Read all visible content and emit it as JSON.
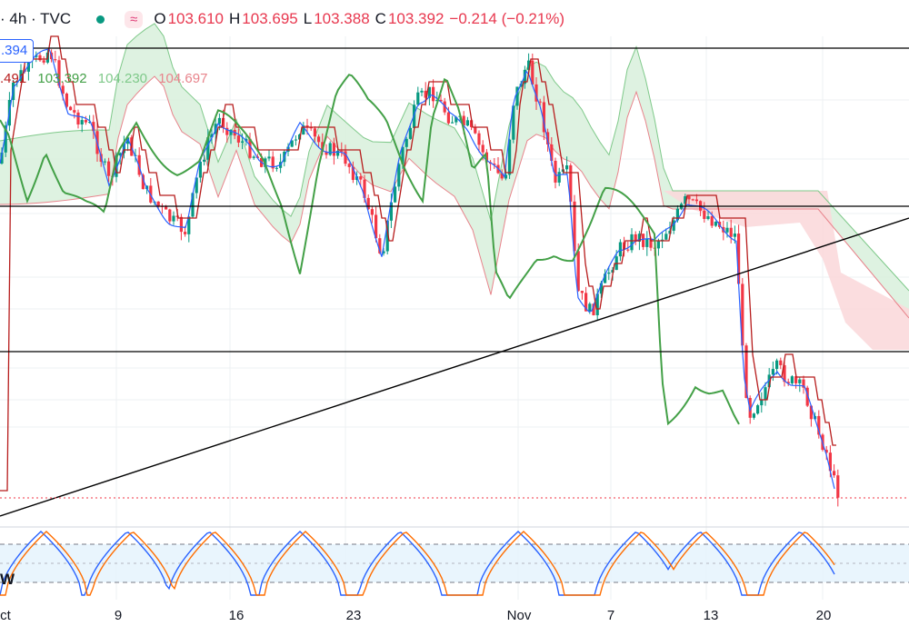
{
  "header": {
    "symbol_text": "· 4h · TVC",
    "icon_dot": "status-dot-icon",
    "icon_wave": "≈",
    "o_label": "O",
    "o_value": "103.610",
    "h_label": "H",
    "h_value": "103.695",
    "l_label": "L",
    "l_value": "103.388",
    "c_label": "C",
    "c_value": "103.392",
    "change": "−0.214 (−0.21%)"
  },
  "price_box": ".394",
  "indicator_values": {
    "v1": ".491",
    "v2": "103.392",
    "v3": "104.230",
    "v4": "104.697"
  },
  "stoch_label": "W",
  "x_axis": {
    "labels": [
      "ct",
      "9",
      "16",
      "23",
      "Nov",
      "7",
      "13",
      "20"
    ]
  },
  "colors": {
    "up": "#089981",
    "down": "#f23645",
    "conversion": "#2962ff",
    "base": "#b71c1c",
    "lagging": "#43a047",
    "cloud_up": "#d8f0dc",
    "cloud_down": "#fbd9dc",
    "stoch_k": "#2962ff",
    "stoch_d": "#ff6d00"
  },
  "chart_data": {
    "type": "candlestick",
    "timeframe": "4h",
    "x": [
      "ct",
      "9",
      "16",
      "23",
      "Nov",
      "7",
      "13",
      "20"
    ],
    "close_series_samples": [
      104.6,
      104.1,
      103.9,
      103.7,
      104.2,
      104.5,
      103.6,
      103.4,
      103.9,
      104.3,
      104.7,
      104.1,
      103.3,
      103.8,
      103.9,
      103.6,
      103.2,
      103.392
    ],
    "last": {
      "open": 103.61,
      "high": 103.695,
      "low": 103.388,
      "close": 103.392,
      "change": -0.214,
      "change_pct": -0.21
    },
    "horizontal_levels_count": 3,
    "trendline": "ascending",
    "ichimoku": true,
    "stochastic": {
      "upper": 80,
      "lower": 20
    }
  }
}
